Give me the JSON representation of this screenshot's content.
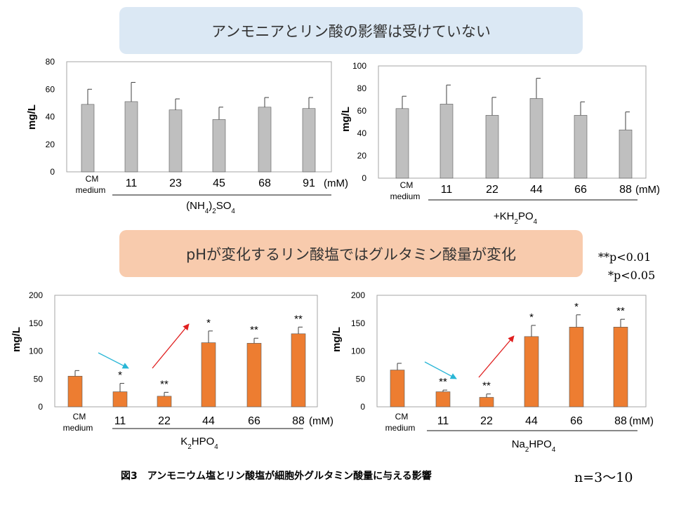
{
  "banners": {
    "top": "アンモニアとリン酸の影響は受けていない",
    "bottom": "pHが変化するリン酸塩ではグルタミン酸量が変化"
  },
  "pvalues": {
    "p1": "**p<0.01",
    "p2": "*p<0.05"
  },
  "caption": "図3　アンモニウム塩とリン酸塩が細胞外グルタミン酸量に与える影響",
  "n_count": "n=3〜10",
  "colors": {
    "gray_bar": "#bfbfbf",
    "orange_bar": "#ed7d31",
    "arrow_down": "#29b6d6",
    "arrow_up": "#e02020"
  },
  "chart_data": [
    {
      "type": "bar",
      "ylabel": "mg/L",
      "ylim": [
        0,
        80
      ],
      "yticks": [
        0,
        20,
        40,
        60,
        80
      ],
      "categories": [
        "CM medium",
        "11",
        "23",
        "45",
        "68",
        "91"
      ],
      "unit": "(mM)",
      "xlabel": "(NH4)2SO4",
      "values": [
        49,
        51,
        45,
        38,
        47,
        46
      ],
      "errors": [
        11,
        14,
        8,
        9,
        7,
        8
      ],
      "significance": [
        "",
        "",
        "",
        "",
        "",
        ""
      ]
    },
    {
      "type": "bar",
      "ylabel": "mg/L",
      "ylim": [
        0,
        100
      ],
      "yticks": [
        0,
        20,
        40,
        60,
        80,
        100
      ],
      "categories": [
        "CM medium",
        "11",
        "22",
        "44",
        "66",
        "88"
      ],
      "unit": "(mM)",
      "xlabel": "+KH2PO4",
      "values": [
        62,
        66,
        56,
        71,
        56,
        43
      ],
      "errors": [
        11,
        17,
        16,
        18,
        12,
        16
      ],
      "significance": [
        "",
        "",
        "",
        "",
        "",
        ""
      ]
    },
    {
      "type": "bar",
      "ylabel": "mg/L",
      "ylim": [
        0,
        200
      ],
      "yticks": [
        0,
        50,
        100,
        150,
        200
      ],
      "categories": [
        "CM medium",
        "11",
        "22",
        "44",
        "66",
        "88"
      ],
      "unit": "(mM)",
      "xlabel": "K2HPO4",
      "values": [
        55,
        27,
        19,
        115,
        114,
        131
      ],
      "errors": [
        10,
        15,
        7,
        21,
        9,
        12
      ],
      "significance": [
        "",
        "*",
        "**",
        "*",
        "**",
        "**"
      ]
    },
    {
      "type": "bar",
      "ylabel": "mg/L",
      "ylim": [
        0,
        200
      ],
      "yticks": [
        0,
        50,
        100,
        150,
        200
      ],
      "categories": [
        "CM medium",
        "11",
        "22",
        "44",
        "66",
        "88"
      ],
      "unit": "(mM)",
      "xlabel": "Na2HPO4",
      "values": [
        66,
        27,
        17,
        126,
        143,
        143
      ],
      "errors": [
        12,
        3,
        6,
        20,
        22,
        14
      ],
      "significance": [
        "",
        "**",
        "**",
        "*",
        "*",
        "**"
      ]
    }
  ]
}
